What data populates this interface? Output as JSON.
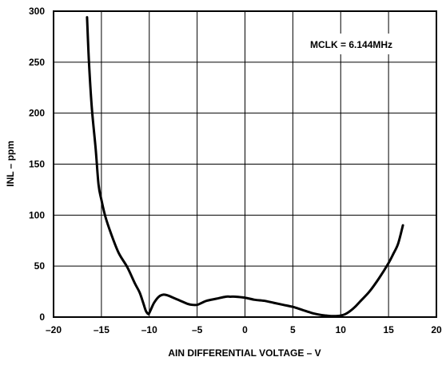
{
  "chart_data": {
    "type": "line",
    "title": "",
    "xlabel": "AIN DIFFERENTIAL VOLTAGE – V",
    "ylabel": "INL – ppm",
    "xlim": [
      -20,
      20
    ],
    "ylim": [
      0,
      300
    ],
    "xticks": [
      -20,
      -15,
      -10,
      -5,
      0,
      5,
      10,
      15,
      20
    ],
    "yticks": [
      0,
      50,
      100,
      150,
      200,
      250,
      300
    ],
    "xtick_labels": [
      "–20",
      "–15",
      "–10",
      "–5",
      "0",
      "5",
      "10",
      "15",
      "20"
    ],
    "ytick_labels": [
      "0",
      "50",
      "100",
      "150",
      "200",
      "250",
      "300"
    ],
    "grid": true,
    "annotation": "MCLK = 6.144MHz",
    "series": [
      {
        "x": [
          -16.5,
          -16.3,
          -16.0,
          -15.6,
          -15.3,
          -15.0,
          -14.6,
          -14.0,
          -13.2,
          -12.3,
          -11.5,
          -11.0,
          -10.6,
          -10.35,
          -10.1,
          -10.0,
          -9.8,
          -9.5,
          -9.0,
          -8.5,
          -8.0,
          -7.5,
          -7.0,
          -6.5,
          -6.0,
          -5.5,
          -5.0,
          -4.5,
          -4.0,
          -3.0,
          -2.0,
          -1.5,
          -1.0,
          0.0,
          1.0,
          2.0,
          3.0,
          4.0,
          5.0,
          6.0,
          7.0,
          8.0,
          8.5,
          9.0,
          9.5,
          10.0,
          10.5,
          11.0,
          11.5,
          12.0,
          13.0,
          14.0,
          15.0,
          15.5,
          16.0,
          16.5
        ],
        "values": [
          294,
          250,
          205,
          165,
          130,
          115,
          99,
          82,
          63,
          49,
          33,
          24,
          13,
          6,
          3,
          4,
          8,
          14,
          20,
          22,
          21,
          19,
          17,
          15,
          13,
          12,
          12,
          14,
          16,
          18,
          20,
          20,
          20,
          19,
          17,
          16,
          14,
          12,
          10,
          7,
          4,
          2,
          1.5,
          1,
          1,
          1.5,
          3,
          6,
          10,
          15,
          25,
          38,
          53,
          62,
          72,
          90
        ]
      }
    ]
  }
}
